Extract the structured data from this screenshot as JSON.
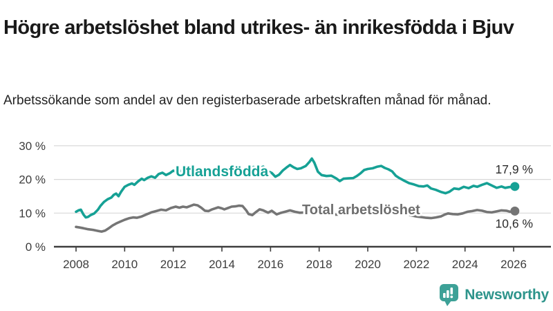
{
  "title": "Högre arbetslöshet bland utrikes- än inrikesfödda i Bjuv",
  "subtitle": "Arbetssökande som andel av den registerbaserade arbetskraften månad för månad.",
  "branding": {
    "logo_text": "Newsworthy",
    "logo_icon": "bar-chart-speech-bubble-icon",
    "icon_color": "#3da197",
    "text_color": "#2d948b"
  },
  "colors": {
    "foreign_born_line": "#16a195",
    "total_line": "#757575",
    "total_label": "#6e6e6e",
    "end_value_text": "#2b2b2b",
    "gridline": "#d8d8d8",
    "axis": "#3d3d3d",
    "axis_text": "#3c3c3c"
  },
  "chart_data": {
    "type": "line",
    "title": "Högre arbetslöshet bland utrikes- än inrikesfödda i Bjuv",
    "subtitle": "Arbetssökande som andel av den registerbaserade arbetskraften månad för månad.",
    "unit": "%",
    "grid": true,
    "x_axis": {
      "ticks": [
        2008,
        2010,
        2012,
        2014,
        2016,
        2018,
        2020,
        2022,
        2024,
        2026
      ],
      "range": [
        2007.1,
        2027.5
      ]
    },
    "y_axis": {
      "ticks": [
        0,
        10,
        20,
        30
      ],
      "tick_labels": [
        "0 %",
        "10 %",
        "20 %",
        "30 %"
      ],
      "range": [
        0,
        31
      ]
    },
    "series": [
      {
        "name": "Utlandsfödda",
        "color": "#16a195",
        "end_label": "17,9 %",
        "end_value": 17.9,
        "points": [
          [
            2008.0,
            10.4
          ],
          [
            2008.1,
            10.8
          ],
          [
            2008.2,
            11.0
          ],
          [
            2008.3,
            9.6
          ],
          [
            2008.4,
            8.7
          ],
          [
            2008.5,
            8.9
          ],
          [
            2008.6,
            9.4
          ],
          [
            2008.75,
            9.9
          ],
          [
            2008.9,
            11.0
          ],
          [
            2009.0,
            12.1
          ],
          [
            2009.15,
            13.3
          ],
          [
            2009.3,
            14.1
          ],
          [
            2009.45,
            14.6
          ],
          [
            2009.55,
            15.4
          ],
          [
            2009.65,
            15.8
          ],
          [
            2009.75,
            15.0
          ],
          [
            2009.85,
            16.3
          ],
          [
            2010.0,
            17.8
          ],
          [
            2010.15,
            18.4
          ],
          [
            2010.3,
            18.8
          ],
          [
            2010.4,
            18.4
          ],
          [
            2010.55,
            19.4
          ],
          [
            2010.7,
            20.2
          ],
          [
            2010.8,
            19.8
          ],
          [
            2010.95,
            20.5
          ],
          [
            2011.1,
            20.9
          ],
          [
            2011.25,
            20.5
          ],
          [
            2011.4,
            21.6
          ],
          [
            2011.55,
            22.0
          ],
          [
            2011.7,
            21.3
          ],
          [
            2011.85,
            21.8
          ],
          [
            2012.0,
            22.6
          ],
          [
            2012.15,
            22.2
          ],
          [
            2012.3,
            22.5
          ],
          [
            2012.5,
            22.8
          ],
          [
            2012.7,
            22.4
          ],
          [
            2012.9,
            22.8
          ],
          [
            2013.1,
            23.0
          ],
          [
            2013.3,
            22.6
          ],
          [
            2013.5,
            23.0
          ],
          [
            2013.7,
            22.5
          ],
          [
            2013.9,
            22.9
          ],
          [
            2014.1,
            23.1
          ],
          [
            2014.3,
            22.7
          ],
          [
            2014.5,
            23.0
          ],
          [
            2014.7,
            22.6
          ],
          [
            2014.9,
            23.0
          ],
          [
            2015.1,
            23.3
          ],
          [
            2015.3,
            23.7
          ],
          [
            2015.5,
            23.1
          ],
          [
            2015.7,
            23.8
          ],
          [
            2015.9,
            22.4
          ],
          [
            2016.05,
            21.9
          ],
          [
            2016.2,
            20.8
          ],
          [
            2016.35,
            21.4
          ],
          [
            2016.5,
            22.6
          ],
          [
            2016.65,
            23.5
          ],
          [
            2016.8,
            24.3
          ],
          [
            2016.95,
            23.6
          ],
          [
            2017.1,
            23.1
          ],
          [
            2017.25,
            23.3
          ],
          [
            2017.45,
            24.0
          ],
          [
            2017.6,
            25.2
          ],
          [
            2017.7,
            26.2
          ],
          [
            2017.8,
            25.0
          ],
          [
            2017.95,
            22.3
          ],
          [
            2018.1,
            21.3
          ],
          [
            2018.3,
            21.0
          ],
          [
            2018.5,
            21.1
          ],
          [
            2018.7,
            20.3
          ],
          [
            2018.85,
            19.5
          ],
          [
            2019.0,
            20.2
          ],
          [
            2019.2,
            20.3
          ],
          [
            2019.4,
            20.4
          ],
          [
            2019.55,
            21.0
          ],
          [
            2019.7,
            21.8
          ],
          [
            2019.85,
            22.8
          ],
          [
            2020.0,
            23.1
          ],
          [
            2020.2,
            23.3
          ],
          [
            2020.4,
            23.8
          ],
          [
            2020.55,
            24.0
          ],
          [
            2020.7,
            23.4
          ],
          [
            2020.85,
            23.0
          ],
          [
            2021.0,
            22.4
          ],
          [
            2021.15,
            21.1
          ],
          [
            2021.3,
            20.4
          ],
          [
            2021.5,
            19.6
          ],
          [
            2021.7,
            18.9
          ],
          [
            2021.9,
            18.5
          ],
          [
            2022.1,
            18.0
          ],
          [
            2022.3,
            17.9
          ],
          [
            2022.45,
            18.2
          ],
          [
            2022.6,
            17.3
          ],
          [
            2022.8,
            16.9
          ],
          [
            2023.0,
            16.3
          ],
          [
            2023.2,
            15.9
          ],
          [
            2023.35,
            16.3
          ],
          [
            2023.55,
            17.3
          ],
          [
            2023.75,
            17.1
          ],
          [
            2023.95,
            17.8
          ],
          [
            2024.15,
            17.4
          ],
          [
            2024.35,
            18.1
          ],
          [
            2024.5,
            17.8
          ],
          [
            2024.7,
            18.4
          ],
          [
            2024.9,
            18.9
          ],
          [
            2025.1,
            18.2
          ],
          [
            2025.3,
            17.5
          ],
          [
            2025.5,
            17.9
          ],
          [
            2025.65,
            17.5
          ],
          [
            2025.8,
            17.7
          ],
          [
            2026.05,
            17.9
          ]
        ]
      },
      {
        "name": "Total arbetslöshet",
        "color": "#757575",
        "end_label": "10,6 %",
        "end_value": 10.6,
        "points": [
          [
            2008.0,
            5.9
          ],
          [
            2008.15,
            5.7
          ],
          [
            2008.3,
            5.5
          ],
          [
            2008.5,
            5.2
          ],
          [
            2008.7,
            5.0
          ],
          [
            2008.9,
            4.7
          ],
          [
            2009.05,
            4.5
          ],
          [
            2009.2,
            4.8
          ],
          [
            2009.35,
            5.5
          ],
          [
            2009.5,
            6.3
          ],
          [
            2009.65,
            6.9
          ],
          [
            2009.8,
            7.4
          ],
          [
            2010.0,
            8.0
          ],
          [
            2010.2,
            8.5
          ],
          [
            2010.35,
            8.7
          ],
          [
            2010.5,
            8.6
          ],
          [
            2010.7,
            9.0
          ],
          [
            2010.9,
            9.6
          ],
          [
            2011.1,
            10.2
          ],
          [
            2011.3,
            10.6
          ],
          [
            2011.5,
            11.0
          ],
          [
            2011.7,
            10.8
          ],
          [
            2011.9,
            11.5
          ],
          [
            2012.1,
            11.9
          ],
          [
            2012.25,
            11.6
          ],
          [
            2012.4,
            11.9
          ],
          [
            2012.55,
            11.7
          ],
          [
            2012.7,
            12.1
          ],
          [
            2012.85,
            12.5
          ],
          [
            2013.0,
            12.3
          ],
          [
            2013.15,
            11.6
          ],
          [
            2013.3,
            10.7
          ],
          [
            2013.45,
            10.6
          ],
          [
            2013.6,
            11.1
          ],
          [
            2013.85,
            11.7
          ],
          [
            2014.0,
            11.4
          ],
          [
            2014.1,
            11.1
          ],
          [
            2014.25,
            11.5
          ],
          [
            2014.4,
            11.9
          ],
          [
            2014.55,
            12.0
          ],
          [
            2014.7,
            12.2
          ],
          [
            2014.85,
            12.1
          ],
          [
            2015.0,
            10.8
          ],
          [
            2015.1,
            9.7
          ],
          [
            2015.25,
            9.4
          ],
          [
            2015.4,
            10.3
          ],
          [
            2015.55,
            11.1
          ],
          [
            2015.7,
            10.8
          ],
          [
            2015.9,
            10.1
          ],
          [
            2016.05,
            10.7
          ],
          [
            2016.25,
            9.6
          ],
          [
            2016.4,
            10.0
          ],
          [
            2016.6,
            10.4
          ],
          [
            2016.8,
            10.8
          ],
          [
            2017.0,
            10.4
          ],
          [
            2017.2,
            10.1
          ],
          [
            2017.5,
            10.2
          ],
          [
            2017.8,
            9.8
          ],
          [
            2018.0,
            10.0
          ],
          [
            2018.3,
            9.7
          ],
          [
            2018.6,
            9.5
          ],
          [
            2018.9,
            9.6
          ],
          [
            2019.2,
            9.4
          ],
          [
            2019.5,
            9.6
          ],
          [
            2019.8,
            10.1
          ],
          [
            2020.0,
            10.6
          ],
          [
            2020.2,
            11.2
          ],
          [
            2020.4,
            11.6
          ],
          [
            2020.6,
            11.4
          ],
          [
            2020.8,
            11.0
          ],
          [
            2021.0,
            10.6
          ],
          [
            2021.2,
            10.2
          ],
          [
            2021.4,
            9.9
          ],
          [
            2021.6,
            9.6
          ],
          [
            2021.8,
            9.3
          ],
          [
            2022.0,
            9.0
          ],
          [
            2022.2,
            8.8
          ],
          [
            2022.4,
            8.6
          ],
          [
            2022.6,
            8.5
          ],
          [
            2022.8,
            8.7
          ],
          [
            2023.0,
            9.0
          ],
          [
            2023.15,
            9.5
          ],
          [
            2023.3,
            9.9
          ],
          [
            2023.5,
            9.7
          ],
          [
            2023.7,
            9.6
          ],
          [
            2023.9,
            9.9
          ],
          [
            2024.1,
            10.4
          ],
          [
            2024.3,
            10.6
          ],
          [
            2024.5,
            10.9
          ],
          [
            2024.7,
            10.7
          ],
          [
            2024.9,
            10.3
          ],
          [
            2025.1,
            10.2
          ],
          [
            2025.3,
            10.5
          ],
          [
            2025.5,
            10.8
          ],
          [
            2025.7,
            10.7
          ],
          [
            2025.85,
            10.4
          ],
          [
            2026.05,
            10.6
          ]
        ]
      }
    ]
  }
}
